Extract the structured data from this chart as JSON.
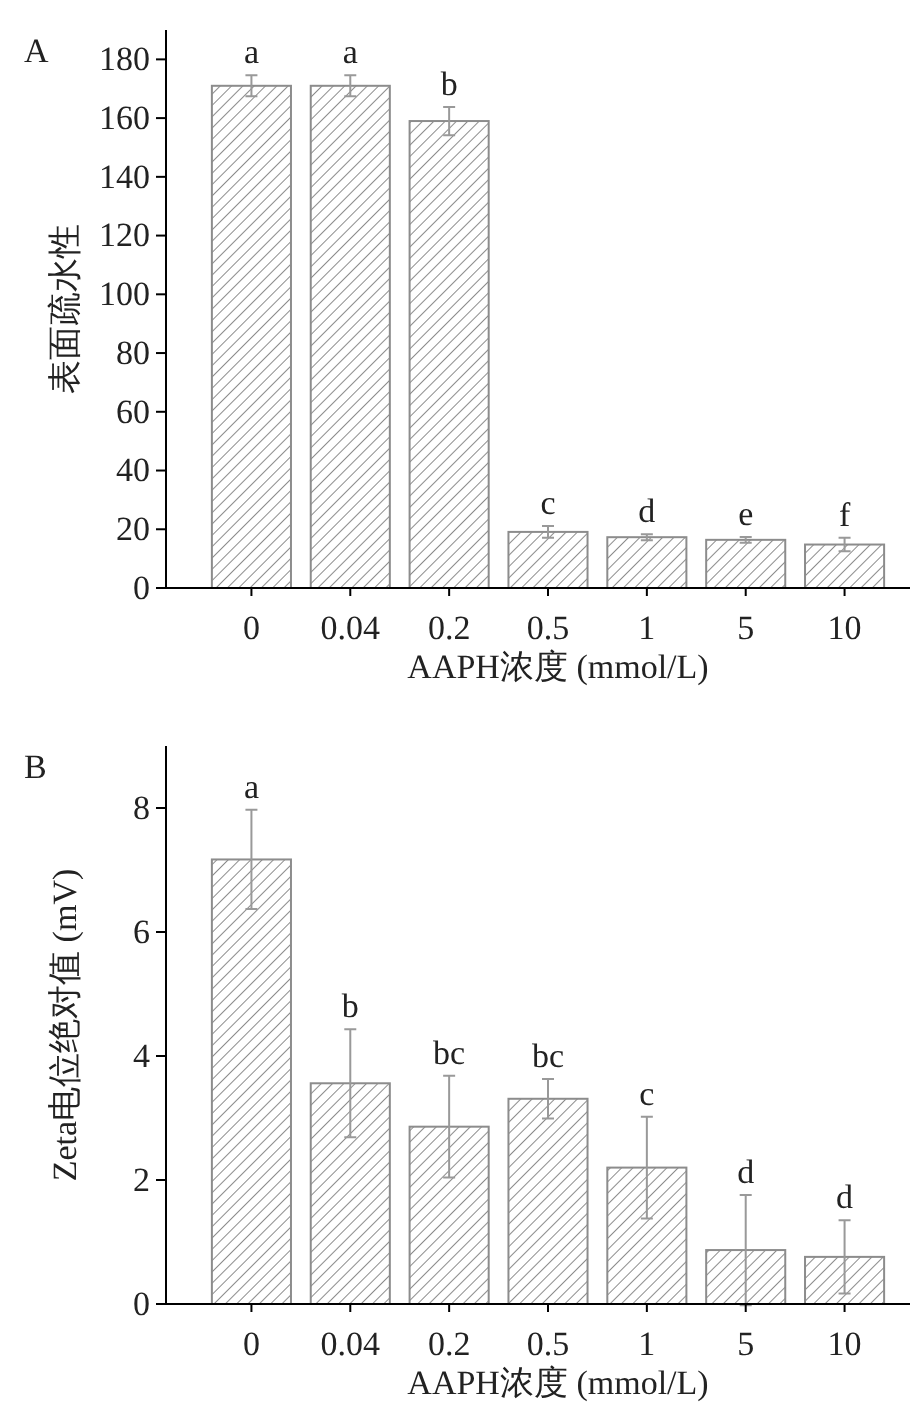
{
  "chart_data": [
    {
      "type": "bar",
      "title": "A",
      "xlabel": "AAPH浓度 (mmol/L)",
      "ylabel": "表面疏水性",
      "categories": [
        "0",
        "0.04",
        "0.2",
        "0.5",
        "1",
        "5",
        "10"
      ],
      "values": [
        171,
        171,
        159,
        19.1,
        17.3,
        16.4,
        14.8
      ],
      "errors": [
        3.6,
        3.6,
        4.8,
        2,
        1,
        1,
        2.3
      ],
      "color": "#8c8c8c",
      "ylim": [
        0,
        190
      ],
      "yticks": [
        0,
        20,
        40,
        60,
        80,
        100,
        120,
        140,
        160,
        180
      ],
      "grid": false,
      "annotations": [
        {
          "text": "a",
          "x": "0",
          "y": 174.6
        },
        {
          "text": "a",
          "x": "0.04",
          "y": 174.6
        },
        {
          "text": "b",
          "x": "0.2",
          "y": 163.8
        },
        {
          "text": "c",
          "x": "0.5",
          "y": 21.1
        },
        {
          "text": "d",
          "x": "1",
          "y": 18.3
        },
        {
          "text": "e",
          "x": "5",
          "y": 17.4
        },
        {
          "text": "f",
          "x": "10",
          "y": 17.1
        }
      ]
    },
    {
      "type": "bar",
      "title": "B",
      "xlabel": "AAPH浓度 (mmol/L)",
      "ylabel": "Zeta电位绝对值 (mV)",
      "categories": [
        "0",
        "0.04",
        "0.2",
        "0.5",
        "1",
        "5",
        "10"
      ],
      "values": [
        7.17,
        3.56,
        2.86,
        3.31,
        2.2,
        0.87,
        0.76
      ],
      "errors": [
        0.8,
        0.87,
        0.82,
        0.32,
        0.82,
        0.89,
        0.59
      ],
      "color": "#8c8c8c",
      "ylim": [
        0,
        9
      ],
      "yticks": [
        0,
        2,
        4,
        6,
        8
      ],
      "grid": false,
      "annotations": [
        {
          "text": "a",
          "x": "0",
          "y": 7.97
        },
        {
          "text": "b",
          "x": "0.04",
          "y": 4.43
        },
        {
          "text": "bc",
          "x": "0.2",
          "y": 3.68
        },
        {
          "text": "bc",
          "x": "0.5",
          "y": 3.63
        },
        {
          "text": "c",
          "x": "1",
          "y": 3.02
        },
        {
          "text": "d",
          "x": "5",
          "y": 1.76
        },
        {
          "text": "d",
          "x": "10",
          "y": 1.35
        }
      ]
    }
  ]
}
